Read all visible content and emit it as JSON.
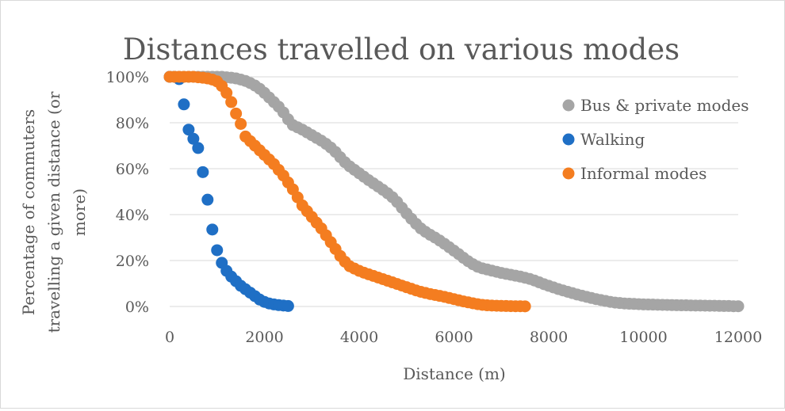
{
  "chart_data": {
    "type": "scatter",
    "title": "Distances travelled on various modes",
    "xlabel": "Distance (m)",
    "ylabel_lines": [
      "Percentage of commuters",
      "travelling a given distance (or",
      "more)"
    ],
    "xlim": [
      0,
      12000
    ],
    "ylim": [
      0,
      100
    ],
    "x_ticks": [
      "0",
      "2000",
      "4000",
      "6000",
      "8000",
      "10000",
      "12000"
    ],
    "y_ticks": [
      "0%",
      "20%",
      "40%",
      "60%",
      "80%",
      "100%"
    ],
    "grid": "horizontal",
    "legend_position": "right",
    "series": [
      {
        "name": "Bus & private modes",
        "color": "#a5a5a5",
        "points": [
          [
            0,
            100
          ],
          [
            100,
            100
          ],
          [
            200,
            100
          ],
          [
            300,
            100
          ],
          [
            400,
            100
          ],
          [
            500,
            100
          ],
          [
            600,
            100
          ],
          [
            700,
            100
          ],
          [
            800,
            100
          ],
          [
            900,
            100
          ],
          [
            1000,
            100
          ],
          [
            1100,
            100
          ],
          [
            1200,
            99.8
          ],
          [
            1300,
            99.6
          ],
          [
            1400,
            99.3
          ],
          [
            1500,
            98.8
          ],
          [
            1600,
            98.2
          ],
          [
            1700,
            97.3
          ],
          [
            1800,
            96.2
          ],
          [
            1900,
            94.8
          ],
          [
            2000,
            93
          ],
          [
            2100,
            91
          ],
          [
            2200,
            89
          ],
          [
            2300,
            87
          ],
          [
            2400,
            84.5
          ],
          [
            2500,
            81.5
          ],
          [
            2600,
            79
          ],
          [
            2700,
            78
          ],
          [
            2800,
            77
          ],
          [
            2900,
            75.8
          ],
          [
            3000,
            74.6
          ],
          [
            3100,
            73.4
          ],
          [
            3200,
            72.2
          ],
          [
            3300,
            70.8
          ],
          [
            3400,
            69.2
          ],
          [
            3500,
            67.3
          ],
          [
            3600,
            65
          ],
          [
            3700,
            62.8
          ],
          [
            3800,
            61
          ],
          [
            3900,
            59.5
          ],
          [
            4000,
            58
          ],
          [
            4100,
            56.5
          ],
          [
            4200,
            55
          ],
          [
            4300,
            53.6
          ],
          [
            4400,
            52.2
          ],
          [
            4500,
            50.8
          ],
          [
            4600,
            49.3
          ],
          [
            4700,
            47.6
          ],
          [
            4800,
            45.5
          ],
          [
            4900,
            43
          ],
          [
            5000,
            40.5
          ],
          [
            5100,
            38.2
          ],
          [
            5200,
            36
          ],
          [
            5300,
            34
          ],
          [
            5400,
            32.5
          ],
          [
            5500,
            31.2
          ],
          [
            5600,
            30
          ],
          [
            5700,
            28.7
          ],
          [
            5800,
            27.3
          ],
          [
            5900,
            25.8
          ],
          [
            6000,
            24.3
          ],
          [
            6100,
            22.8
          ],
          [
            6200,
            21.2
          ],
          [
            6300,
            19.7
          ],
          [
            6400,
            18.4
          ],
          [
            6500,
            17.3
          ],
          [
            6600,
            16.6
          ],
          [
            6700,
            16.1
          ],
          [
            6800,
            15.6
          ],
          [
            6900,
            15.1
          ],
          [
            7000,
            14.6
          ],
          [
            7100,
            14.2
          ],
          [
            7200,
            13.8
          ],
          [
            7300,
            13.4
          ],
          [
            7400,
            13
          ],
          [
            7500,
            12.5
          ],
          [
            7600,
            12
          ],
          [
            7700,
            11.3
          ],
          [
            7800,
            10.5
          ],
          [
            7900,
            9.7
          ],
          [
            8000,
            9
          ],
          [
            8100,
            8.3
          ],
          [
            8200,
            7.6
          ],
          [
            8300,
            7
          ],
          [
            8400,
            6.4
          ],
          [
            8500,
            5.8
          ],
          [
            8600,
            5.2
          ],
          [
            8700,
            4.7
          ],
          [
            8800,
            4.2
          ],
          [
            8900,
            3.7
          ],
          [
            9000,
            3.2
          ],
          [
            9100,
            2.8
          ],
          [
            9200,
            2.4
          ],
          [
            9300,
            2
          ],
          [
            9400,
            1.7
          ],
          [
            9500,
            1.5
          ],
          [
            9600,
            1.3
          ],
          [
            9700,
            1.2
          ],
          [
            9800,
            1.1
          ],
          [
            9900,
            1
          ],
          [
            10000,
            0.9
          ],
          [
            10100,
            0.85
          ],
          [
            10200,
            0.8
          ],
          [
            10300,
            0.75
          ],
          [
            10400,
            0.7
          ],
          [
            10500,
            0.65
          ],
          [
            10600,
            0.6
          ],
          [
            10700,
            0.55
          ],
          [
            10800,
            0.5
          ],
          [
            10900,
            0.5
          ],
          [
            11000,
            0.45
          ],
          [
            11100,
            0.4
          ],
          [
            11200,
            0.4
          ],
          [
            11300,
            0.35
          ],
          [
            11400,
            0.3
          ],
          [
            11500,
            0.3
          ],
          [
            11600,
            0.25
          ],
          [
            11700,
            0.2
          ],
          [
            11800,
            0.2
          ],
          [
            11900,
            0.1
          ],
          [
            12000,
            0.1
          ]
        ]
      },
      {
        "name": "Walking",
        "color": "#1f6fc5",
        "points": [
          [
            0,
            100
          ],
          [
            100,
            100
          ],
          [
            200,
            99
          ],
          [
            300,
            88
          ],
          [
            400,
            77
          ],
          [
            500,
            73
          ],
          [
            600,
            69
          ],
          [
            700,
            58.5
          ],
          [
            800,
            46.5
          ],
          [
            900,
            33.5
          ],
          [
            1000,
            24.5
          ],
          [
            1100,
            19
          ],
          [
            1200,
            15.5
          ],
          [
            1300,
            13
          ],
          [
            1400,
            11
          ],
          [
            1500,
            9
          ],
          [
            1600,
            7.5
          ],
          [
            1700,
            6
          ],
          [
            1800,
            4.5
          ],
          [
            1900,
            3
          ],
          [
            2000,
            2
          ],
          [
            2100,
            1.3
          ],
          [
            2200,
            0.9
          ],
          [
            2300,
            0.6
          ],
          [
            2400,
            0.4
          ],
          [
            2500,
            0.2
          ]
        ]
      },
      {
        "name": "Informal modes",
        "color": "#f47d20",
        "points": [
          [
            0,
            100
          ],
          [
            100,
            100
          ],
          [
            200,
            100
          ],
          [
            300,
            100
          ],
          [
            400,
            100
          ],
          [
            500,
            100
          ],
          [
            600,
            99.8
          ],
          [
            700,
            99.6
          ],
          [
            800,
            99.3
          ],
          [
            900,
            98.8
          ],
          [
            1000,
            98
          ],
          [
            1100,
            96
          ],
          [
            1200,
            93
          ],
          [
            1300,
            89
          ],
          [
            1400,
            84
          ],
          [
            1500,
            79.5
          ],
          [
            1600,
            74
          ],
          [
            1700,
            72
          ],
          [
            1800,
            70
          ],
          [
            1900,
            68
          ],
          [
            2000,
            66
          ],
          [
            2100,
            64
          ],
          [
            2200,
            62
          ],
          [
            2300,
            59.5
          ],
          [
            2400,
            57
          ],
          [
            2500,
            54
          ],
          [
            2600,
            51
          ],
          [
            2700,
            47.5
          ],
          [
            2800,
            44
          ],
          [
            2900,
            41.5
          ],
          [
            3000,
            39
          ],
          [
            3100,
            36.5
          ],
          [
            3200,
            34
          ],
          [
            3300,
            31
          ],
          [
            3400,
            28
          ],
          [
            3500,
            25
          ],
          [
            3600,
            22
          ],
          [
            3700,
            19.5
          ],
          [
            3800,
            17.5
          ],
          [
            3900,
            16.5
          ],
          [
            4000,
            15.5
          ],
          [
            4100,
            14.7
          ],
          [
            4200,
            14
          ],
          [
            4300,
            13.3
          ],
          [
            4400,
            12.6
          ],
          [
            4500,
            11.9
          ],
          [
            4600,
            11.2
          ],
          [
            4700,
            10.5
          ],
          [
            4800,
            9.8
          ],
          [
            4900,
            9.1
          ],
          [
            5000,
            8.4
          ],
          [
            5100,
            7.7
          ],
          [
            5200,
            7
          ],
          [
            5300,
            6.4
          ],
          [
            5400,
            5.9
          ],
          [
            5500,
            5.4
          ],
          [
            5600,
            5
          ],
          [
            5700,
            4.6
          ],
          [
            5800,
            4.2
          ],
          [
            5900,
            3.7
          ],
          [
            6000,
            3.2
          ],
          [
            6100,
            2.7
          ],
          [
            6200,
            2.2
          ],
          [
            6300,
            1.8
          ],
          [
            6400,
            1.4
          ],
          [
            6500,
            1
          ],
          [
            6600,
            0.7
          ],
          [
            6700,
            0.5
          ],
          [
            6800,
            0.4
          ],
          [
            6900,
            0.3
          ],
          [
            7000,
            0.25
          ],
          [
            7100,
            0.2
          ],
          [
            7200,
            0.15
          ],
          [
            7300,
            0.1
          ],
          [
            7400,
            0.1
          ],
          [
            7500,
            0.05
          ]
        ]
      }
    ]
  }
}
